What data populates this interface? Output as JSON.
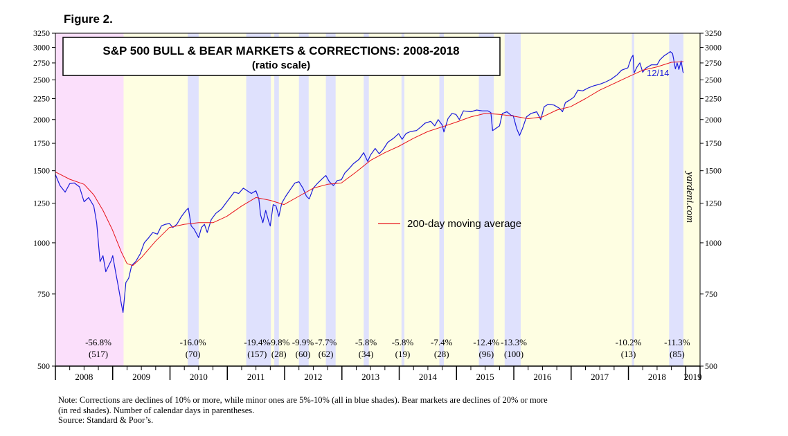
{
  "figure_label": "Figure 2.",
  "chart_data": {
    "type": "line",
    "title": "S&P 500 BULL & BEAR MARKETS & CORRECTIONS: 2008-2018",
    "subtitle": "(ratio scale)",
    "scale": "log",
    "ylim": [
      500,
      3250
    ],
    "yticks": [
      500,
      750,
      1000,
      1250,
      1500,
      1750,
      2000,
      2250,
      2500,
      2750,
      3000,
      3250
    ],
    "ytick_labels": [
      "500",
      "750",
      "1000",
      "1250",
      "1500",
      "1750",
      "2000",
      "2250",
      "2500",
      "2750",
      "3000",
      "3250"
    ],
    "xlim": [
      2008.0,
      2019.25
    ],
    "year_labels": [
      "2008",
      "2009",
      "2010",
      "2011",
      "2012",
      "2013",
      "2014",
      "2015",
      "2016",
      "2017",
      "2018",
      "2019"
    ],
    "last_label": "12/14",
    "watermark": "yardeni.com",
    "legend": {
      "label": "200-day moving average",
      "color": "#e8131b",
      "position": "center-right"
    },
    "series": [
      {
        "name": "S&P 500",
        "color": "#1a1adb",
        "points": [
          [
            2008.0,
            1468
          ],
          [
            2008.08,
            1380
          ],
          [
            2008.17,
            1330
          ],
          [
            2008.25,
            1395
          ],
          [
            2008.33,
            1400
          ],
          [
            2008.42,
            1370
          ],
          [
            2008.5,
            1260
          ],
          [
            2008.58,
            1290
          ],
          [
            2008.67,
            1230
          ],
          [
            2008.72,
            1120
          ],
          [
            2008.78,
            900
          ],
          [
            2008.83,
            930
          ],
          [
            2008.88,
            850
          ],
          [
            2008.93,
            880
          ],
          [
            2008.97,
            903
          ],
          [
            2009.0,
            930
          ],
          [
            2009.05,
            850
          ],
          [
            2009.1,
            780
          ],
          [
            2009.15,
            710
          ],
          [
            2009.18,
            676
          ],
          [
            2009.23,
            800
          ],
          [
            2009.28,
            820
          ],
          [
            2009.33,
            880
          ],
          [
            2009.4,
            900
          ],
          [
            2009.48,
            940
          ],
          [
            2009.55,
            1000
          ],
          [
            2009.63,
            1030
          ],
          [
            2009.7,
            1060
          ],
          [
            2009.78,
            1050
          ],
          [
            2009.85,
            1100
          ],
          [
            2009.92,
            1110
          ],
          [
            2009.99,
            1115
          ],
          [
            2010.05,
            1090
          ],
          [
            2010.12,
            1110
          ],
          [
            2010.2,
            1160
          ],
          [
            2010.28,
            1200
          ],
          [
            2010.32,
            1215
          ],
          [
            2010.37,
            1100
          ],
          [
            2010.42,
            1080
          ],
          [
            2010.5,
            1030
          ],
          [
            2010.55,
            1090
          ],
          [
            2010.6,
            1110
          ],
          [
            2010.65,
            1060
          ],
          [
            2010.72,
            1140
          ],
          [
            2010.8,
            1180
          ],
          [
            2010.9,
            1210
          ],
          [
            2010.99,
            1258
          ],
          [
            2011.05,
            1290
          ],
          [
            2011.12,
            1330
          ],
          [
            2011.2,
            1320
          ],
          [
            2011.28,
            1360
          ],
          [
            2011.35,
            1340
          ],
          [
            2011.42,
            1320
          ],
          [
            2011.5,
            1340
          ],
          [
            2011.55,
            1280
          ],
          [
            2011.58,
            1170
          ],
          [
            2011.62,
            1120
          ],
          [
            2011.67,
            1200
          ],
          [
            2011.72,
            1130
          ],
          [
            2011.75,
            1099
          ],
          [
            2011.8,
            1240
          ],
          [
            2011.85,
            1230
          ],
          [
            2011.9,
            1160
          ],
          [
            2011.95,
            1250
          ],
          [
            2012.02,
            1300
          ],
          [
            2012.1,
            1350
          ],
          [
            2012.18,
            1400
          ],
          [
            2012.25,
            1410
          ],
          [
            2012.32,
            1360
          ],
          [
            2012.38,
            1300
          ],
          [
            2012.43,
            1280
          ],
          [
            2012.5,
            1360
          ],
          [
            2012.58,
            1400
          ],
          [
            2012.67,
            1440
          ],
          [
            2012.72,
            1460
          ],
          [
            2012.78,
            1410
          ],
          [
            2012.85,
            1380
          ],
          [
            2012.92,
            1420
          ],
          [
            2012.99,
            1426
          ],
          [
            2013.05,
            1480
          ],
          [
            2013.12,
            1515
          ],
          [
            2013.2,
            1560
          ],
          [
            2013.3,
            1600
          ],
          [
            2013.38,
            1660
          ],
          [
            2013.45,
            1580
          ],
          [
            2013.5,
            1640
          ],
          [
            2013.58,
            1700
          ],
          [
            2013.65,
            1650
          ],
          [
            2013.72,
            1690
          ],
          [
            2013.8,
            1760
          ],
          [
            2013.9,
            1800
          ],
          [
            2013.99,
            1848
          ],
          [
            2014.05,
            1790
          ],
          [
            2014.12,
            1850
          ],
          [
            2014.2,
            1870
          ],
          [
            2014.3,
            1880
          ],
          [
            2014.38,
            1920
          ],
          [
            2014.45,
            1960
          ],
          [
            2014.55,
            1980
          ],
          [
            2014.62,
            1930
          ],
          [
            2014.68,
            2000
          ],
          [
            2014.75,
            1940
          ],
          [
            2014.78,
            1865
          ],
          [
            2014.85,
            2010
          ],
          [
            2014.92,
            2070
          ],
          [
            2014.99,
            2059
          ],
          [
            2015.05,
            2000
          ],
          [
            2015.12,
            2100
          ],
          [
            2015.25,
            2090
          ],
          [
            2015.35,
            2110
          ],
          [
            2015.45,
            2100
          ],
          [
            2015.55,
            2100
          ],
          [
            2015.6,
            2080
          ],
          [
            2015.63,
            1880
          ],
          [
            2015.68,
            1900
          ],
          [
            2015.75,
            1930
          ],
          [
            2015.8,
            2070
          ],
          [
            2015.88,
            2090
          ],
          [
            2015.95,
            2050
          ],
          [
            2015.99,
            2044
          ],
          [
            2016.05,
            1900
          ],
          [
            2016.1,
            1829
          ],
          [
            2016.15,
            1900
          ],
          [
            2016.22,
            2030
          ],
          [
            2016.3,
            2070
          ],
          [
            2016.4,
            2090
          ],
          [
            2016.47,
            2000
          ],
          [
            2016.53,
            2150
          ],
          [
            2016.6,
            2180
          ],
          [
            2016.7,
            2170
          ],
          [
            2016.8,
            2130
          ],
          [
            2016.85,
            2090
          ],
          [
            2016.9,
            2200
          ],
          [
            2016.99,
            2239
          ],
          [
            2017.05,
            2270
          ],
          [
            2017.12,
            2360
          ],
          [
            2017.2,
            2350
          ],
          [
            2017.3,
            2390
          ],
          [
            2017.4,
            2420
          ],
          [
            2017.5,
            2440
          ],
          [
            2017.6,
            2470
          ],
          [
            2017.7,
            2510
          ],
          [
            2017.8,
            2570
          ],
          [
            2017.88,
            2640
          ],
          [
            2017.99,
            2674
          ],
          [
            2018.05,
            2830
          ],
          [
            2018.08,
            2872
          ],
          [
            2018.1,
            2600
          ],
          [
            2018.15,
            2690
          ],
          [
            2018.2,
            2750
          ],
          [
            2018.25,
            2610
          ],
          [
            2018.3,
            2670
          ],
          [
            2018.4,
            2720
          ],
          [
            2018.5,
            2720
          ],
          [
            2018.55,
            2800
          ],
          [
            2018.62,
            2860
          ],
          [
            2018.7,
            2910
          ],
          [
            2018.73,
            2930
          ],
          [
            2018.77,
            2900
          ],
          [
            2018.82,
            2660
          ],
          [
            2018.85,
            2750
          ],
          [
            2018.88,
            2650
          ],
          [
            2018.92,
            2780
          ],
          [
            2018.95,
            2620
          ],
          [
            2018.96,
            2600
          ]
        ]
      },
      {
        "name": "200-day moving average",
        "color": "#e8131b",
        "points": [
          [
            2008.0,
            1490
          ],
          [
            2008.25,
            1430
          ],
          [
            2008.5,
            1390
          ],
          [
            2008.67,
            1310
          ],
          [
            2008.83,
            1200
          ],
          [
            2008.99,
            1080
          ],
          [
            2009.15,
            950
          ],
          [
            2009.25,
            890
          ],
          [
            2009.35,
            880
          ],
          [
            2009.5,
            920
          ],
          [
            2009.75,
            1010
          ],
          [
            2009.99,
            1090
          ],
          [
            2010.25,
            1110
          ],
          [
            2010.5,
            1120
          ],
          [
            2010.75,
            1120
          ],
          [
            2010.99,
            1160
          ],
          [
            2011.25,
            1230
          ],
          [
            2011.5,
            1290
          ],
          [
            2011.75,
            1270
          ],
          [
            2011.99,
            1240
          ],
          [
            2012.25,
            1300
          ],
          [
            2012.5,
            1360
          ],
          [
            2012.75,
            1390
          ],
          [
            2012.99,
            1400
          ],
          [
            2013.25,
            1490
          ],
          [
            2013.5,
            1590
          ],
          [
            2013.75,
            1660
          ],
          [
            2013.99,
            1720
          ],
          [
            2014.25,
            1800
          ],
          [
            2014.5,
            1870
          ],
          [
            2014.75,
            1920
          ],
          [
            2014.99,
            1970
          ],
          [
            2015.25,
            2030
          ],
          [
            2015.5,
            2070
          ],
          [
            2015.75,
            2060
          ],
          [
            2015.99,
            2040
          ],
          [
            2016.25,
            2010
          ],
          [
            2016.5,
            2030
          ],
          [
            2016.75,
            2110
          ],
          [
            2016.99,
            2150
          ],
          [
            2017.25,
            2250
          ],
          [
            2017.5,
            2360
          ],
          [
            2017.75,
            2450
          ],
          [
            2017.99,
            2540
          ],
          [
            2018.25,
            2640
          ],
          [
            2018.5,
            2690
          ],
          [
            2018.75,
            2760
          ],
          [
            2018.96,
            2770
          ]
        ]
      }
    ],
    "shaded_regions": [
      {
        "kind": "bear",
        "start": 2008.0,
        "end": 2009.19,
        "pct": "-56.8%",
        "days": "(517)",
        "label_x": 2008.75
      },
      {
        "kind": "correction",
        "start": 2010.31,
        "end": 2010.5,
        "pct": "-16.0%",
        "days": "(70)",
        "label_x": 2010.4
      },
      {
        "kind": "correction",
        "start": 2011.33,
        "end": 2011.76,
        "pct": "-19.4%",
        "days": "(157)",
        "label_x": 2011.52
      },
      {
        "kind": "correction",
        "start": 2011.82,
        "end": 2011.9,
        "pct": "-9.8%",
        "days": "(28)",
        "label_x": 2011.9
      },
      {
        "kind": "correction",
        "start": 2012.25,
        "end": 2012.42,
        "pct": "-9.9%",
        "days": "(60)",
        "label_x": 2012.32
      },
      {
        "kind": "correction",
        "start": 2012.72,
        "end": 2012.89,
        "pct": "-7.7%",
        "days": "(62)",
        "label_x": 2012.72
      },
      {
        "kind": "correction",
        "start": 2013.38,
        "end": 2013.47,
        "pct": "-5.8%",
        "days": "(34)",
        "label_x": 2013.42
      },
      {
        "kind": "correction",
        "start": 2014.04,
        "end": 2014.09,
        "pct": "-5.8%",
        "days": "(19)",
        "label_x": 2014.06
      },
      {
        "kind": "correction",
        "start": 2014.7,
        "end": 2014.78,
        "pct": "-7.4%",
        "days": "(28)",
        "label_x": 2014.74
      },
      {
        "kind": "correction",
        "start": 2015.39,
        "end": 2015.65,
        "pct": "-12.4%",
        "days": "(96)",
        "label_x": 2015.52
      },
      {
        "kind": "correction",
        "start": 2015.84,
        "end": 2016.12,
        "pct": "-13.3%",
        "days": "(100)",
        "label_x": 2016.0
      },
      {
        "kind": "correction",
        "start": 2018.06,
        "end": 2018.1,
        "pct": "-10.2%",
        "days": "(13)",
        "label_x": 2018.0
      },
      {
        "kind": "correction",
        "start": 2018.71,
        "end": 2018.96,
        "pct": "-11.3%",
        "days": "(85)",
        "label_x": 2018.85
      }
    ],
    "colors": {
      "bull_bg": "#fefee2",
      "bear_bg": "#fbdffb",
      "correction_bg": "#dfe1fd",
      "sp500_line": "#1a1adb",
      "ma_line": "#e8131b",
      "last_label": "#1a1adb"
    }
  },
  "notes": {
    "line1": "Note: Corrections are declines of 10% or more, while minor ones are 5%-10% (all in blue shades).  Bear markets are declines of 20% or more",
    "line2": "(in red shades). Number of calendar days in parentheses.",
    "source": "Source: Standard & Poor’s."
  }
}
